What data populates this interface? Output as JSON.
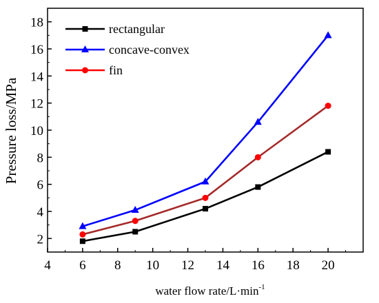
{
  "chart_data": {
    "type": "line",
    "xlabel": "water flow rate/L·min",
    "xlabel_sup": "-1",
    "ylabel": "Pressure loss/MPa",
    "xlim": [
      4,
      22
    ],
    "ylim": [
      1,
      19
    ],
    "xticks": [
      4,
      6,
      8,
      10,
      12,
      14,
      16,
      18,
      20
    ],
    "yticks": [
      2,
      4,
      6,
      8,
      10,
      12,
      14,
      16,
      18
    ],
    "legend_position": "top-left",
    "grid": false,
    "series": [
      {
        "name": "rectangular",
        "color": "#000000",
        "marker": "square",
        "x": [
          6,
          9,
          13,
          16,
          20
        ],
        "y": [
          1.8,
          2.5,
          4.2,
          5.8,
          8.4
        ]
      },
      {
        "name": "concave-convex",
        "color": "#0000ff",
        "marker": "triangle",
        "x": [
          6,
          9,
          13,
          16,
          20
        ],
        "y": [
          2.9,
          4.1,
          6.2,
          10.6,
          17.0
        ]
      },
      {
        "name": "fin",
        "color": "#ff0000",
        "line_color": "#a52a2a",
        "marker": "circle",
        "x": [
          6,
          9,
          13,
          16,
          20
        ],
        "y": [
          2.3,
          3.3,
          5.0,
          8.0,
          11.8
        ]
      }
    ]
  }
}
